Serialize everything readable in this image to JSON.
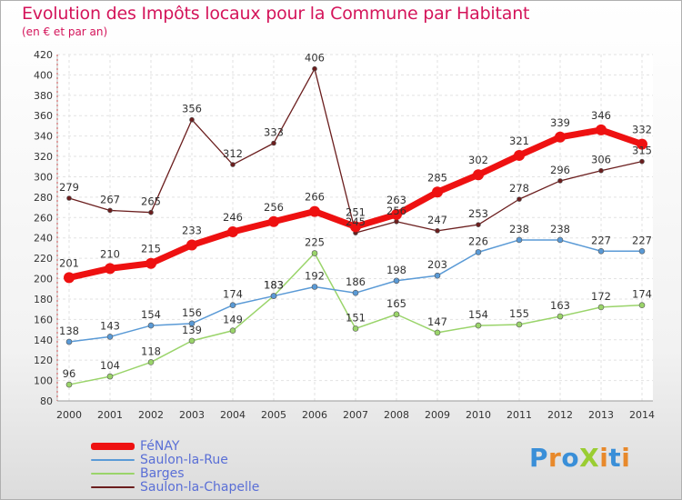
{
  "title": "Evolution des Impôts locaux pour la Commune par Habitant",
  "subtitle": "(en € et par an)",
  "logo": {
    "text": "ProXiti",
    "colors": [
      "#3a8fd8",
      "#e8892b",
      "#3a8fd8",
      "#9acd32",
      "#e8892b",
      "#3a8fd8",
      "#e8892b"
    ]
  },
  "chart_data": {
    "type": "line",
    "title": "Evolution des Impôts locaux pour la Commune par Habitant",
    "subtitle": "(en € et par an)",
    "xlabel": "",
    "ylabel": "",
    "ylim": [
      80,
      420
    ],
    "yticks": [
      80,
      100,
      120,
      140,
      160,
      180,
      200,
      220,
      240,
      260,
      280,
      300,
      320,
      340,
      360,
      380,
      400,
      420
    ],
    "grid": true,
    "legend_position": "bottom-left",
    "categories": [
      "2000",
      "2001",
      "2002",
      "2003",
      "2004",
      "2005",
      "2006",
      "2007",
      "2008",
      "2009",
      "2010",
      "2011",
      "2012",
      "2013",
      "2014"
    ],
    "series": [
      {
        "name": "Saulon-la-Chapelle",
        "color": "#6b1e1e",
        "width": 1.3,
        "marker": 2.5,
        "values": [
          279,
          267,
          265,
          356,
          312,
          333,
          406,
          245,
          256,
          247,
          253,
          278,
          296,
          306,
          315
        ]
      },
      {
        "name": "Barges",
        "color": "#9ad46a",
        "width": 1.5,
        "marker": 3,
        "values": [
          96,
          104,
          118,
          139,
          149,
          183,
          225,
          151,
          165,
          147,
          154,
          155,
          163,
          172,
          174
        ]
      },
      {
        "name": "Saulon-la-Rue",
        "color": "#5a9ad6",
        "width": 1.5,
        "marker": 3,
        "values": [
          138,
          143,
          154,
          156,
          174,
          183,
          192,
          186,
          198,
          203,
          226,
          238,
          238,
          227,
          227
        ]
      },
      {
        "name": "FéNAY",
        "color": "#ee1111",
        "width": 7,
        "marker": 6,
        "values": [
          201,
          210,
          215,
          233,
          246,
          256,
          266,
          251,
          263,
          285,
          302,
          321,
          339,
          346,
          332
        ]
      }
    ],
    "legend_order": [
      "FéNAY",
      "Saulon-la-Rue",
      "Barges",
      "Saulon-la-Chapelle"
    ]
  }
}
